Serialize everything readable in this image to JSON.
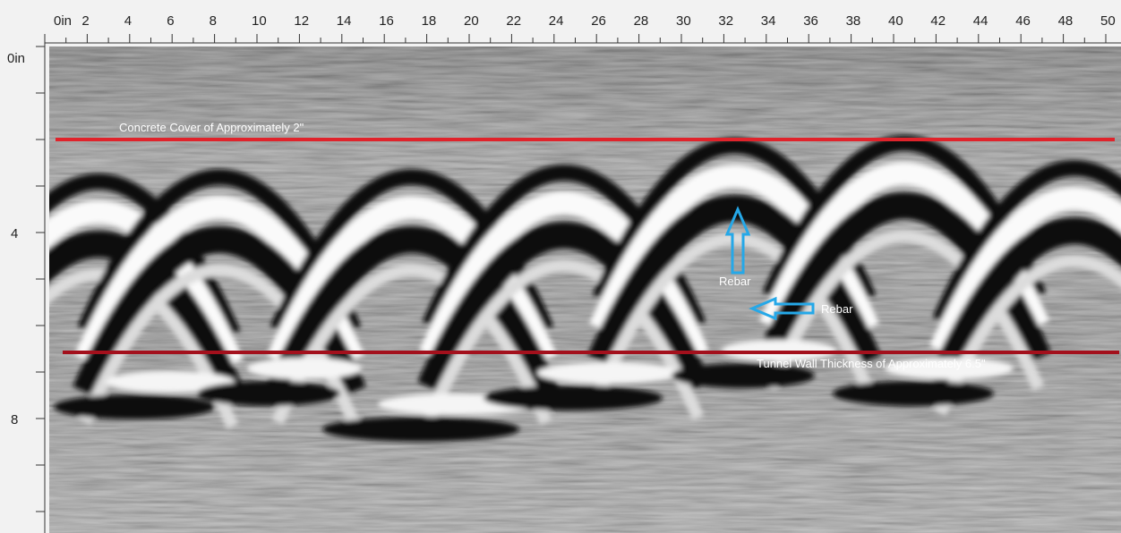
{
  "top_ruler": {
    "labels": [
      "0in",
      "2",
      "4",
      "6",
      "8",
      "10",
      "12",
      "14",
      "16",
      "18",
      "20",
      "22",
      "24",
      "26",
      "28",
      "30",
      "32",
      "34",
      "36",
      "38",
      "40",
      "42",
      "44",
      "46",
      "48",
      "50"
    ]
  },
  "left_ruler": {
    "labels": [
      "0in",
      "4",
      "8"
    ]
  },
  "annotations": {
    "concrete_cover": "Concrete Cover of Approximately 2\"",
    "wall_thickness": "Tunnel Wall Thickness of Approximately 6.5\"",
    "rebar_top": "Rebar",
    "rebar_side": "Rebar"
  }
}
